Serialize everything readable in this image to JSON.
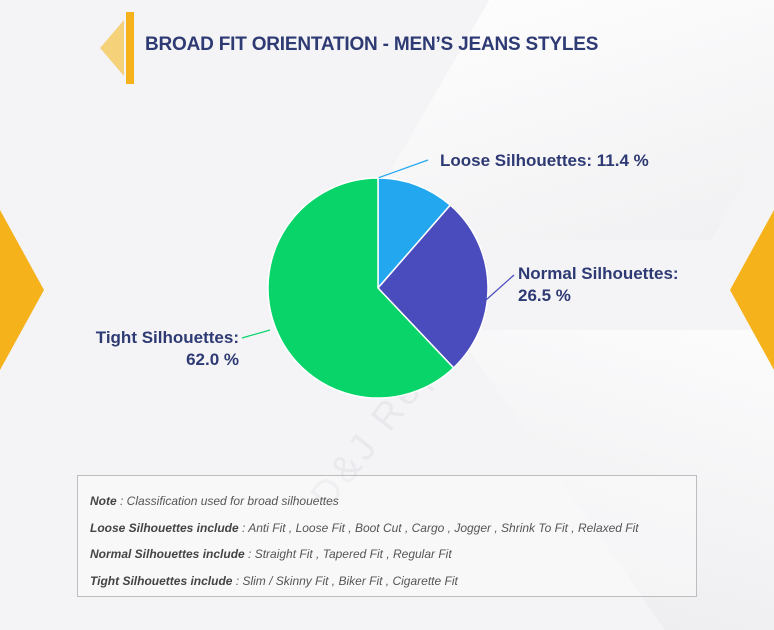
{
  "page": {
    "title": "BROAD FIT ORIENTATION - MEN’S JEANS STYLES",
    "watermark": "D&J Reports"
  },
  "colors": {
    "accent": "#f5b21b",
    "title": "#2e3a73",
    "loose": "#23a8f0",
    "normal": "#4a4bbd",
    "tight": "#08d46a"
  },
  "chart_data": {
    "type": "pie",
    "title": "",
    "slices": [
      {
        "name": "Loose Silhouettes",
        "label_line1": "Loose Silhouettes: 11.4 %",
        "label_line2": "",
        "value": 11.4,
        "color": "#23a8f0"
      },
      {
        "name": "Normal Silhouettes",
        "label_line1": "Normal Silhouettes:",
        "label_line2": "26.5 %",
        "value": 26.5,
        "color": "#4a4bbd"
      },
      {
        "name": "Tight Silhouettes",
        "label_line1": "Tight Silhouettes:",
        "label_line2": "62.0 %",
        "value": 62.0,
        "color": "#08d46a"
      }
    ]
  },
  "note": {
    "line1_label": "Note",
    "line1_text": " : Classification used for broad silhouettes",
    "line2_label": "Loose Silhouettes include",
    "line2_text": " : Anti Fit , Loose Fit , Boot Cut , Cargo , Jogger , Shrink To Fit , Relaxed Fit",
    "line3_label": "Normal Silhouettes include",
    "line3_text": " : Straight Fit , Tapered Fit , Regular Fit",
    "line4_label": "Tight Silhouettes include",
    "line4_text": " : Slim / Skinny Fit , Biker Fit , Cigarette Fit"
  }
}
